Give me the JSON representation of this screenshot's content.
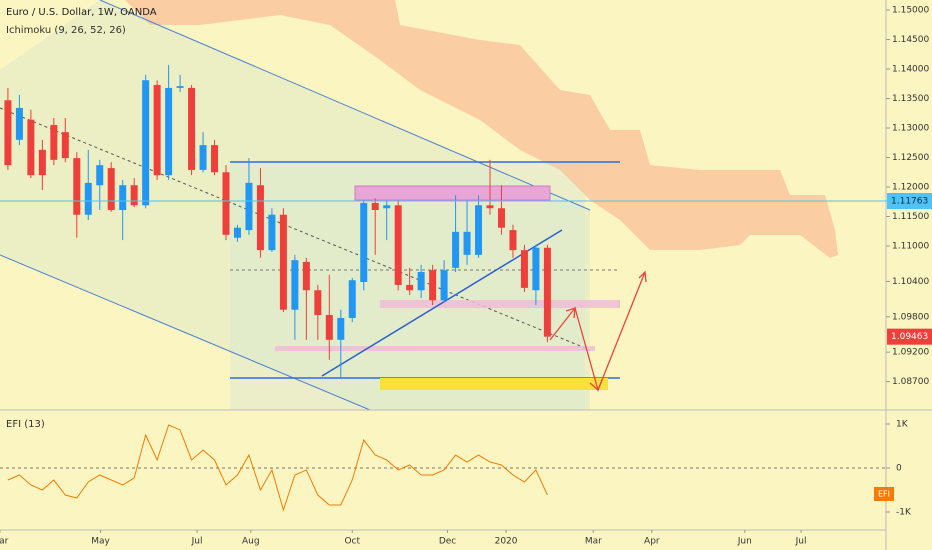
{
  "header": {
    "symbol": "Euro / U.S. Dollar, 1W, OANDA",
    "indicator": "Ichimoku (9, 26, 52, 26)"
  },
  "chart_data": [
    {
      "type": "candlestick",
      "x": [
        0,
        1,
        2,
        3,
        4,
        5,
        6,
        7,
        8,
        9,
        10,
        11,
        12,
        13,
        14,
        15,
        16,
        17,
        18,
        19,
        20,
        21,
        22,
        23,
        24,
        25,
        26,
        27,
        28,
        29,
        30,
        31,
        32,
        33,
        34,
        35,
        36,
        37,
        38,
        39,
        40,
        41,
        42,
        43,
        44,
        45,
        46,
        47
      ],
      "open": [
        1.1347,
        1.128,
        1.1314,
        1.1263,
        1.1305,
        1.1293,
        1.1249,
        1.1153,
        1.1203,
        1.1232,
        1.1161,
        1.1203,
        1.1169,
        1.1373,
        1.122,
        1.1368,
        1.1368,
        1.1229,
        1.1271,
        1.1225,
        1.1114,
        1.1127,
        1.1203,
        1.1093,
        1.1153,
        1.0992,
        1.1073,
        1.1025,
        1.0983,
        1.0941,
        1.0978,
        1.1039,
        1.1173,
        1.1164,
        1.1169,
        1.1034,
        1.1025,
        1.1059,
        1.1008,
        1.1063,
        1.1085,
        1.1085,
        1.1169,
        1.1164,
        1.1127,
        1.1093,
        1.1025,
        1.1097
      ],
      "high": [
        1.1368,
        1.1356,
        1.1331,
        1.128,
        1.1317,
        1.1317,
        1.1259,
        1.1263,
        1.1246,
        1.1242,
        1.1212,
        1.1215,
        1.139,
        1.1381,
        1.1407,
        1.139,
        1.1373,
        1.1293,
        1.128,
        1.1237,
        1.1136,
        1.1249,
        1.1232,
        1.1164,
        1.1164,
        1.1085,
        1.108,
        1.1034,
        1.1051,
        1.0992,
        1.1046,
        1.1178,
        1.1181,
        1.1178,
        1.1178,
        1.1063,
        1.1068,
        1.1068,
        1.1076,
        1.1186,
        1.1178,
        1.1186,
        1.1246,
        1.1203,
        1.1136,
        1.1102,
        1.1102,
        1.1102
      ],
      "low": [
        1.1229,
        1.1271,
        1.1215,
        1.1195,
        1.1237,
        1.1242,
        1.1114,
        1.1144,
        1.1161,
        1.1158,
        1.111,
        1.1166,
        1.1164,
        1.1212,
        1.1212,
        1.1361,
        1.122,
        1.1225,
        1.122,
        1.111,
        1.1107,
        1.1119,
        1.108,
        1.109,
        1.0988,
        1.0941,
        1.0941,
        1.0941,
        1.0907,
        1.0876,
        1.0971,
        1.1025,
        1.1085,
        1.111,
        1.1025,
        1.1017,
        1.1012,
        1.1,
        1.1005,
        1.1056,
        1.1068,
        1.108,
        1.1153,
        1.1119,
        1.108,
        1.1022,
        1.1,
        1.0937
      ],
      "close": [
        1.1237,
        1.1334,
        1.122,
        1.122,
        1.1246,
        1.1249,
        1.1153,
        1.1207,
        1.1237,
        1.1161,
        1.1203,
        1.1169,
        1.1381,
        1.122,
        1.1368,
        1.1371,
        1.1229,
        1.1271,
        1.1225,
        1.1119,
        1.1131,
        1.1207,
        1.1093,
        1.1153,
        1.0992,
        1.1076,
        1.1025,
        1.0983,
        1.0941,
        1.0978,
        1.1042,
        1.1173,
        1.1161,
        1.1169,
        1.1034,
        1.1025,
        1.1056,
        1.1008,
        1.1059,
        1.1124,
        1.1124,
        1.1169,
        1.1164,
        1.1131,
        1.1093,
        1.1029,
        1.1097,
        1.09463
      ],
      "up_color": "#2196f3",
      "down_color": "#ef3f3a",
      "xlim": [
        -0.69,
        76.5
      ],
      "ylim": [
        1.0822,
        1.1517
      ],
      "xticks": [
        {
          "value": -0.7,
          "label": "Mar"
        },
        {
          "value": 8.07,
          "label": "May"
        },
        {
          "value": 16.48,
          "label": "Jul"
        },
        {
          "value": 21.16,
          "label": "Aug"
        },
        {
          "value": 30.0,
          "label": "Oct"
        },
        {
          "value": 38.3,
          "label": "Dec"
        },
        {
          "value": 43.4,
          "label": "2020"
        },
        {
          "value": 51.0,
          "label": "Mar"
        },
        {
          "value": 56.1,
          "label": "Apr"
        },
        {
          "value": 64.2,
          "label": "Jun"
        },
        {
          "value": 69.1,
          "label": "Jul"
        }
      ],
      "yticks": [
        {
          "value": 1.15,
          "label": "1.15000"
        },
        {
          "value": 1.145,
          "label": "1.14500"
        },
        {
          "value": 1.14,
          "label": "1.14000"
        },
        {
          "value": 1.135,
          "label": "1.13500"
        },
        {
          "value": 1.13,
          "label": "1.13000"
        },
        {
          "value": 1.125,
          "label": "1.12500"
        },
        {
          "value": 1.12,
          "label": "1.12000"
        },
        {
          "value": 1.115,
          "label": "1.11500"
        },
        {
          "value": 1.11,
          "label": "1.11000"
        },
        {
          "value": 1.104,
          "label": "1.10400"
        },
        {
          "value": 1.098,
          "label": "1.09800"
        },
        {
          "value": 1.092,
          "label": "1.09200"
        },
        {
          "value": 1.087,
          "label": "1.08700"
        }
      ],
      "hline": {
        "value": 1.11763,
        "color": "#4fc3f7"
      }
    },
    {
      "type": "line",
      "title": "EFI (13)",
      "badge": "EFI",
      "color": "#f57c00",
      "x": [
        0,
        1,
        2,
        3,
        4,
        5,
        6,
        7,
        8,
        9,
        10,
        11,
        12,
        13,
        14,
        15,
        16,
        17,
        18,
        19,
        20,
        21,
        22,
        23,
        24,
        25,
        26,
        27,
        28,
        29,
        30,
        31,
        32,
        33,
        34,
        35,
        36,
        37,
        38,
        39,
        40,
        41,
        42,
        43,
        44,
        45,
        46,
        47
      ],
      "values": [
        -273,
        -159,
        -386,
        -500,
        -273,
        -614,
        -682,
        -318,
        -159,
        -273,
        -386,
        -227,
        750,
        182,
        977,
        864,
        182,
        409,
        182,
        -386,
        -159,
        295,
        -500,
        -45,
        -955,
        -159,
        -45,
        -614,
        -841,
        -841,
        -273,
        636,
        295,
        182,
        -45,
        68,
        -159,
        -159,
        -45,
        295,
        136,
        295,
        136,
        68,
        -159,
        -318,
        -45,
        -614
      ],
      "ylim": [
        -1409,
        1318
      ],
      "yticks": [
        {
          "value": 1000,
          "label": "1K"
        },
        0,
        {
          "value": -1000,
          "label": "-1K"
        }
      ]
    }
  ]
}
